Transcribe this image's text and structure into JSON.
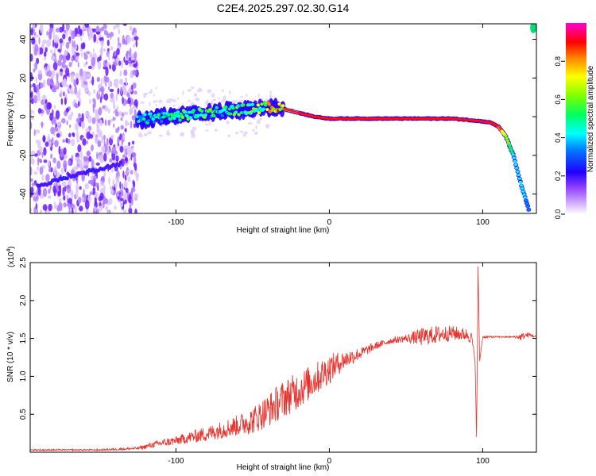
{
  "figure": {
    "title": "C2E4.2025.297.02.30.G14"
  },
  "chart_data": [
    {
      "type": "heatmap",
      "title": "C2E4.2025.297.02.30.G14",
      "xlabel": "Height of straight line (km)",
      "ylabel": "Frequency (Hz)",
      "xlim": [
        -195,
        135
      ],
      "ylim": [
        -50,
        48
      ],
      "xticks": [
        -100,
        0,
        100
      ],
      "yticks": [
        -40,
        -20,
        0,
        20,
        40
      ],
      "xtick_labels": [
        "-100",
        "0",
        "100"
      ],
      "ytick_labels": [
        "-40",
        "-20",
        "0",
        "20",
        "40"
      ],
      "colorbar": {
        "label": "Normalized spectral amplitude",
        "range": [
          0,
          1
        ],
        "ticks": [
          0.0,
          0.2,
          0.4,
          0.6,
          0.8
        ],
        "tick_labels": [
          "0.0",
          "0.2",
          "0.4",
          "0.6",
          "0.8"
        ],
        "colors": [
          "#ffffff",
          "#c9a0ff",
          "#8000ff",
          "#0000ff",
          "#00ffff",
          "#00ff00",
          "#ffff00",
          "#ff8000",
          "#ff0000",
          "#ff00ff"
        ]
      },
      "ridge": {
        "name": "dominant frequency track",
        "x": [
          -125,
          -110,
          -90,
          -70,
          -50,
          -40,
          -30,
          -20,
          -10,
          0,
          20,
          40,
          60,
          80,
          95,
          105,
          110,
          115,
          120,
          125,
          130
        ],
        "y": [
          -2,
          0,
          1,
          3,
          4,
          5,
          4,
          2,
          0,
          -1,
          -1,
          -1,
          -1,
          -1,
          -2,
          -3,
          -5,
          -10,
          -20,
          -35,
          -48
        ],
        "amplitude": [
          0.45,
          0.5,
          0.55,
          0.55,
          0.6,
          0.7,
          0.85,
          0.9,
          0.95,
          0.95,
          0.95,
          0.95,
          0.95,
          0.95,
          0.95,
          0.9,
          0.9,
          0.7,
          0.5,
          0.45,
          0.4
        ]
      },
      "secondary_track": {
        "name": "weak inclined track",
        "x": [
          -190,
          -170,
          -150,
          -135
        ],
        "y": [
          -36,
          -31,
          -27,
          -24
        ],
        "amplitude": [
          0.3,
          0.3,
          0.3,
          0.25
        ]
      },
      "noise_region_x": [
        -195,
        -125
      ]
    },
    {
      "type": "line",
      "xlabel": "Height of straight line (km)",
      "ylabel": "SNR (10 * v/v)",
      "multiplier_label": "(x10",
      "multiplier_exponent": "4",
      "multiplier_suffix": ")",
      "xlim": [
        -195,
        135
      ],
      "ylim": [
        0,
        2.5
      ],
      "xticks": [
        -100,
        0,
        100
      ],
      "yticks": [
        0.5,
        1.0,
        1.5,
        2.0,
        2.5
      ],
      "xtick_labels": [
        "-100",
        "0",
        "100"
      ],
      "ytick_labels": [
        "0.5",
        "1.0",
        "1.5",
        "2.0",
        "2.5"
      ],
      "series": [
        {
          "name": "SNR",
          "color": "#e8322d",
          "x": [
            -195,
            -150,
            -125,
            -110,
            -100,
            -90,
            -80,
            -70,
            -60,
            -50,
            -40,
            -30,
            -20,
            -10,
            0,
            10,
            20,
            30,
            40,
            50,
            60,
            70,
            80,
            90,
            93,
            95,
            96,
            97,
            98,
            100,
            110,
            120,
            125,
            130,
            135
          ],
          "y": [
            0.03,
            0.03,
            0.05,
            0.12,
            0.15,
            0.2,
            0.24,
            0.3,
            0.35,
            0.42,
            0.55,
            0.7,
            0.82,
            0.95,
            1.1,
            1.22,
            1.3,
            1.4,
            1.47,
            1.5,
            1.52,
            1.55,
            1.57,
            1.55,
            1.5,
            1.2,
            0.2,
            2.45,
            1.2,
            1.52,
            1.52,
            1.52,
            1.52,
            1.55,
            1.52
          ],
          "noise_amplitude": [
            0.01,
            0.01,
            0.02,
            0.05,
            0.06,
            0.08,
            0.1,
            0.12,
            0.14,
            0.18,
            0.22,
            0.25,
            0.25,
            0.22,
            0.2,
            0.12,
            0.08,
            0.05,
            0.04,
            0.05,
            0.12,
            0.12,
            0.1,
            0.08,
            0.08,
            0,
            0,
            0,
            0,
            0.02,
            0.01,
            0.01,
            0.05,
            0.03,
            0.01
          ]
        }
      ]
    }
  ]
}
